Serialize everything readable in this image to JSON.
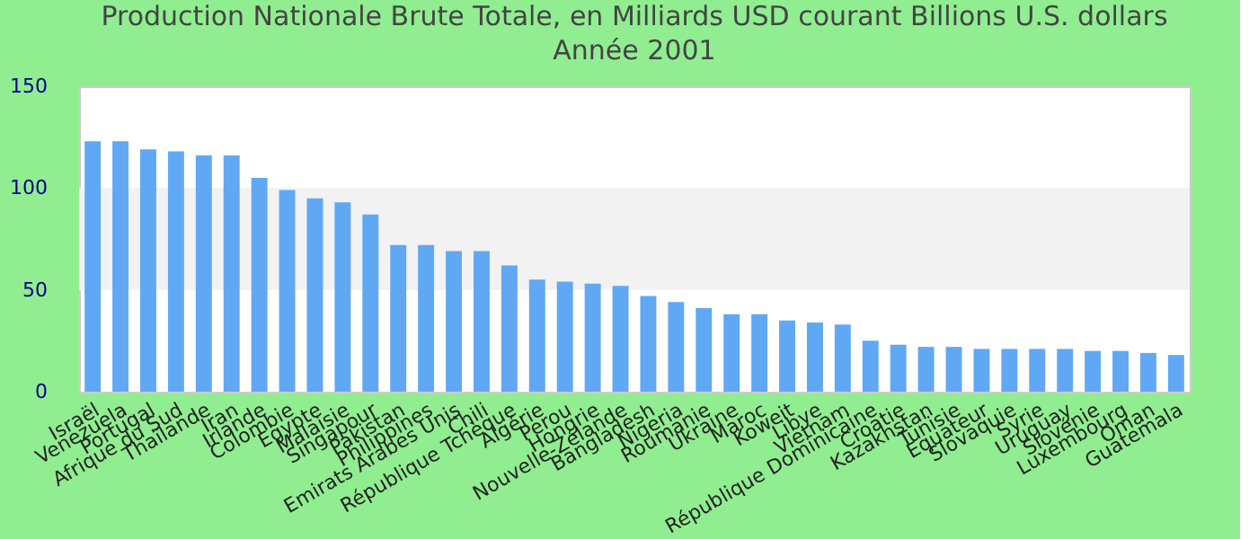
{
  "chart_data": {
    "type": "bar",
    "title": "Production Nationale Brute Totale, en Milliards USD courant Billions U.S. dollars",
    "subtitle": "Année 2001",
    "categories": [
      "Israël",
      "Venezuela",
      "Portugal",
      "Afrique du Sud",
      "Thaïlande",
      "Iran",
      "Irlande",
      "Colombie",
      "Egypte",
      "Malaisie",
      "Singapour",
      "Pakistan",
      "Philippines",
      "Emirats Arabes Unis",
      "Chili",
      "République Tchèque",
      "Algérie",
      "Perou",
      "Hongrie",
      "Nouvelle-Zélande",
      "Bangladesh",
      "Nigeria",
      "Roumanie",
      "Ukraine",
      "Maroc",
      "Koweit",
      "Libye",
      "Vietnam",
      "République Dominicaine",
      "Croatie",
      "Kazakhstan",
      "Tunisie",
      "Equateur",
      "Slovaquie",
      "Syrie",
      "Uruguay",
      "Slovénie",
      "Luxembourg",
      "Oman",
      "Guatemala"
    ],
    "values": [
      123,
      123,
      119,
      118,
      116,
      116,
      105,
      99,
      95,
      93,
      87,
      72,
      72,
      69,
      69,
      62,
      55,
      54,
      53,
      52,
      47,
      44,
      41,
      38,
      38,
      35,
      34,
      33,
      25,
      23,
      22,
      22,
      21,
      21,
      21,
      21,
      20,
      20,
      19,
      18
    ],
    "color": "#61a8f4",
    "ylim": [
      0,
      150
    ],
    "yticks": [
      0,
      50,
      100,
      150
    ],
    "bands": [
      {
        "axis": "y",
        "from": 50,
        "to": 100,
        "color": "#f2f2f2"
      }
    ]
  }
}
